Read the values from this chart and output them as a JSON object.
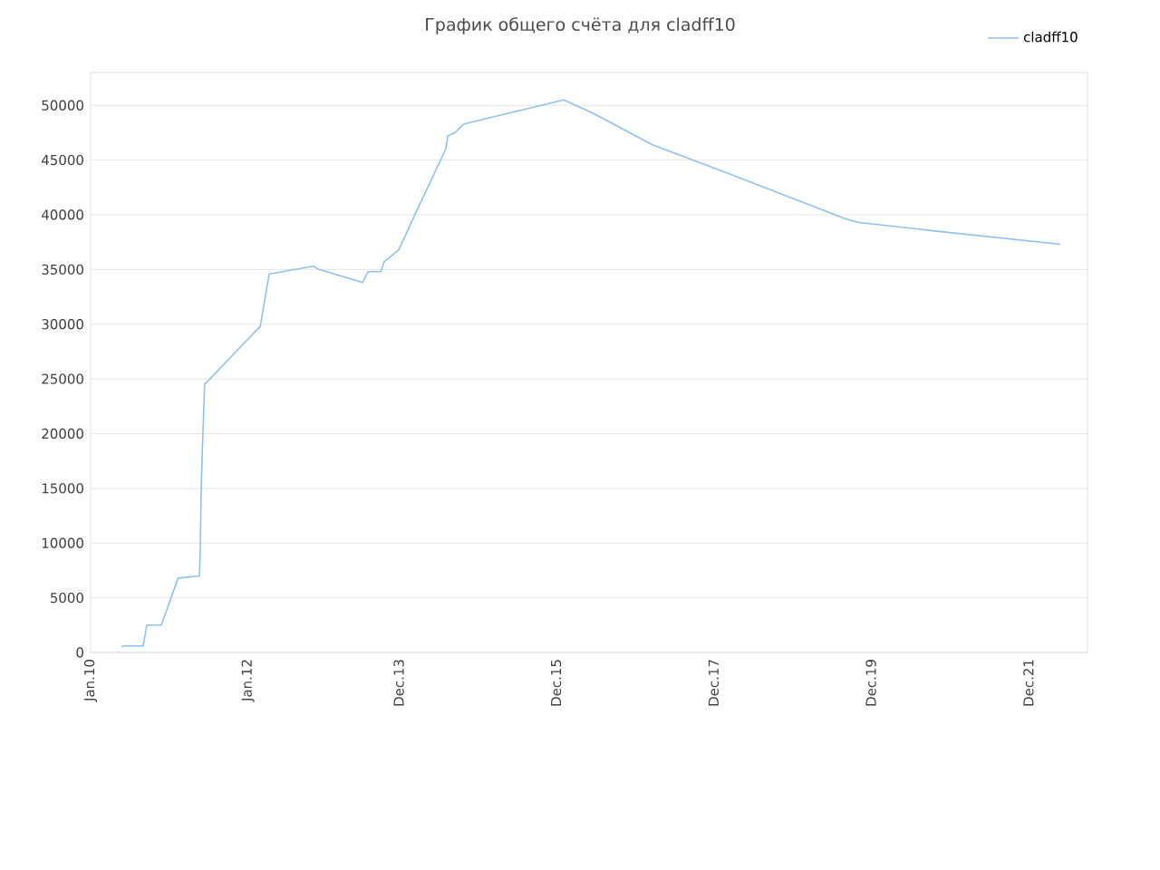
{
  "chart_data": {
    "type": "line",
    "title": "График общего счёта для cladff10",
    "x": [
      "2010-05-26",
      "2010-06-01",
      "2010-09-02",
      "2010-09-19",
      "2010-11-25",
      "2011-02-11",
      "2011-05-21",
      "2011-05-25",
      "2011-05-29",
      "2011-06-06",
      "2011-06-14",
      "2012-02-27",
      "2012-04-09",
      "2012-10-31",
      "2012-11-26",
      "2013-06-16",
      "2013-07-11",
      "2013-09-08",
      "2013-09-24",
      "2013-12-01",
      "2014-02-23",
      "2014-07-07",
      "2014-07-16",
      "2014-08-18",
      "2014-09-30",
      "2016-01-05",
      "2016-05-19",
      "2017-02-20",
      "2018-01-23",
      "2019-08-08",
      "2019-10-06",
      "2020-10-02",
      "2022-04-28"
    ],
    "series": [
      {
        "name": "cladff10",
        "color": "#8fc1f2",
        "values": [
          500,
          600,
          600,
          2500,
          2500,
          6800,
          7000,
          9500,
          15000,
          20000,
          24500,
          29800,
          34600,
          35300,
          35000,
          33800,
          34800,
          34800,
          35700,
          36800,
          40400,
          46000,
          47200,
          47500,
          48300,
          50500,
          49300,
          46400,
          43900,
          39600,
          39300,
          38500,
          37300
        ]
      }
    ],
    "xlim": [
      "2010-01-01",
      "2022-09-01"
    ],
    "xticks": [
      {
        "value": "2010-01-01",
        "label": "Jan.10"
      },
      {
        "value": "2012-01-01",
        "label": "Jan.12"
      },
      {
        "value": "2013-12-01",
        "label": "Dec.13"
      },
      {
        "value": "2015-12-01",
        "label": "Dec.15"
      },
      {
        "value": "2017-12-01",
        "label": "Dec.17"
      },
      {
        "value": "2019-12-01",
        "label": "Dec.19"
      },
      {
        "value": "2021-12-01",
        "label": "Dec.21"
      }
    ],
    "ylim": [
      0,
      53000
    ],
    "yticks": [
      0,
      5000,
      10000,
      15000,
      20000,
      25000,
      30000,
      35000,
      40000,
      45000,
      50000
    ],
    "grid": "y",
    "legend": "top right",
    "marker": "none",
    "line_style": "solid"
  }
}
